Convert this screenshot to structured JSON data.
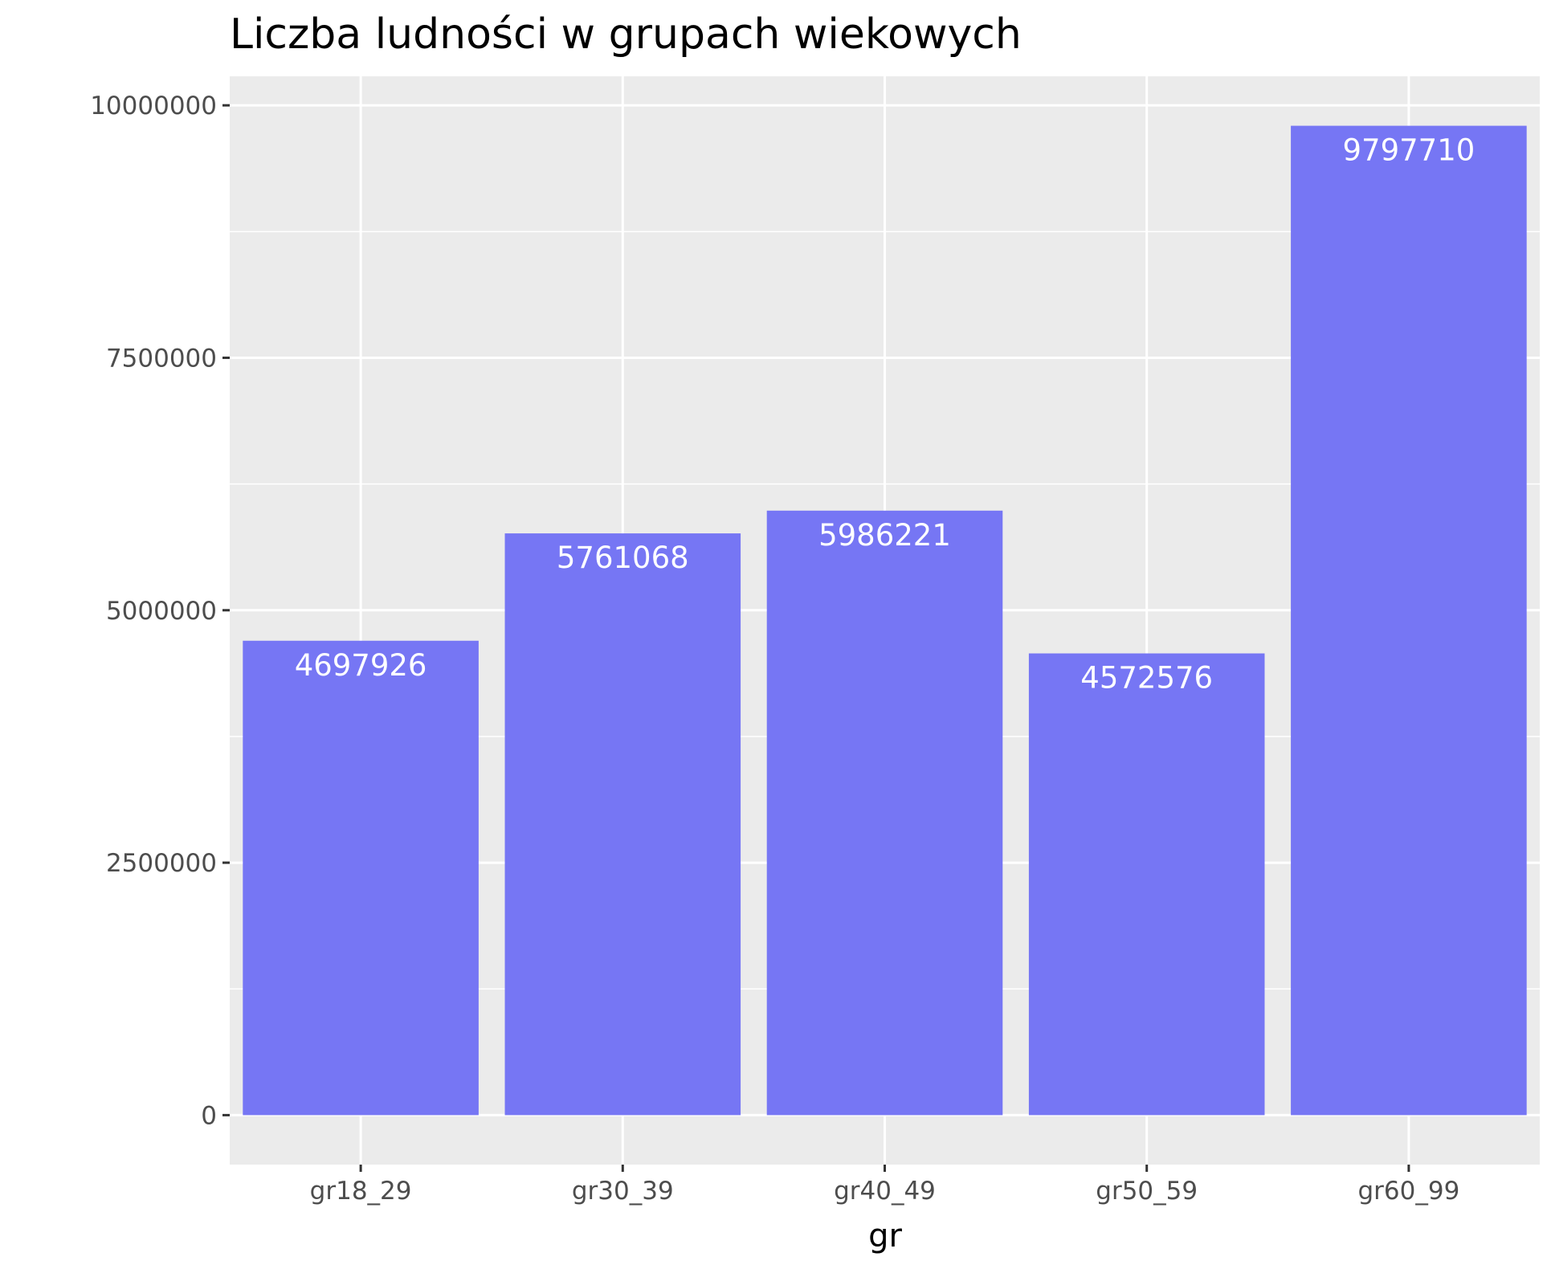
{
  "chart_data": {
    "type": "bar",
    "title": "Liczba ludności w grupach wiekowych",
    "xlabel": "gr",
    "ylabel": "",
    "categories": [
      "gr18_29",
      "gr30_39",
      "gr40_49",
      "gr50_59",
      "gr60_99"
    ],
    "values": [
      4697926,
      5761068,
      5986221,
      4572576,
      9797710
    ],
    "data_labels": [
      "4697926",
      "5761068",
      "5986221",
      "4572576",
      "9797710"
    ],
    "ylim": [
      -489886,
      10287596
    ],
    "y_ticks": [
      0,
      2500000,
      5000000,
      7500000,
      10000000
    ],
    "y_tick_labels": [
      "0",
      "2500000",
      "5000000",
      "7500000",
      "10000000"
    ],
    "grid": true,
    "legend": "none",
    "colors": {
      "bar": "#7676f4",
      "panel": "#ebebeb",
      "grid": "#ffffff",
      "data_label": "#ffffff",
      "tick_label": "#4d4d4d",
      "tick_mark": "#333333"
    }
  }
}
